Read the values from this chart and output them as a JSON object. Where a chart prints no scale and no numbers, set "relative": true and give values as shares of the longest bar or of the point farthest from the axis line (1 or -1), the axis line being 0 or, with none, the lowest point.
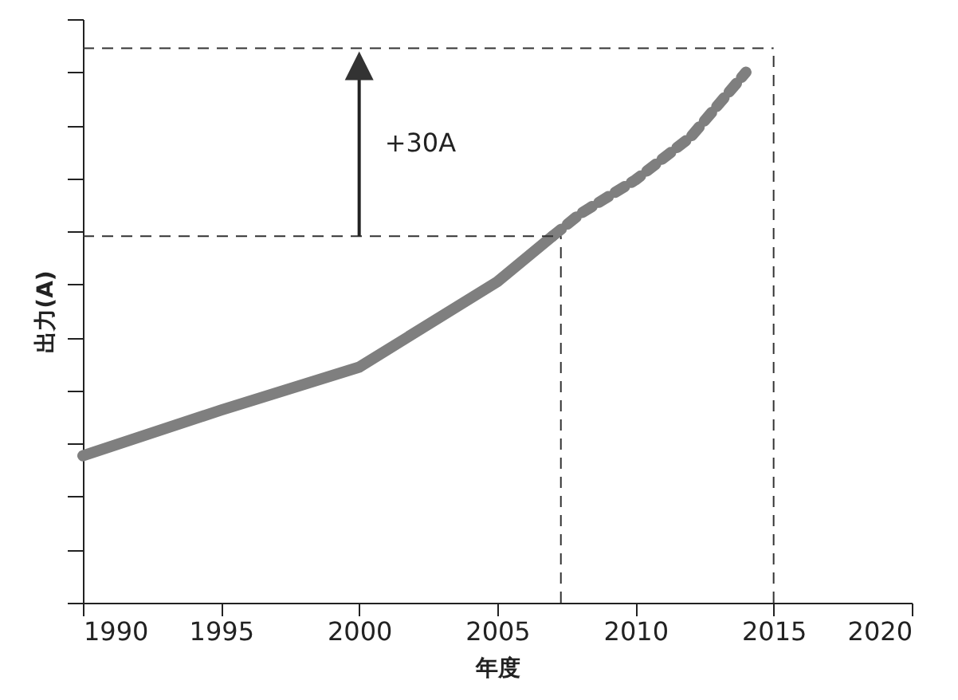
{
  "chart_data": {
    "type": "line",
    "relative": true,
    "xlabel": "年度",
    "ylabel": "出力(A)",
    "xlim": [
      1990,
      2020
    ],
    "xticks": [
      1990,
      1995,
      2000,
      2005,
      2010,
      2015,
      2020
    ],
    "series": [
      {
        "color": "#7f7f7f",
        "line_style": "solid",
        "x": [
          1990,
          1995,
          2000,
          2005,
          2007
        ],
        "values": [
          0.277,
          0.363,
          0.444,
          0.605,
          0.691
        ]
      },
      {
        "color": "#7f7f7f",
        "line_style": "dashed",
        "x": [
          2007,
          2008,
          2010,
          2012,
          2014
        ],
        "values": [
          0.691,
          0.733,
          0.797,
          0.878,
          1.0
        ]
      }
    ],
    "ref_lines": [
      {
        "axis": "y",
        "value": 0.691,
        "color": "#333333",
        "line_style": "dashed"
      },
      {
        "axis": "y",
        "value": 1.045,
        "color": "#333333",
        "line_style": "dashed"
      },
      {
        "axis": "x",
        "value": 2007.3,
        "color": "#333333",
        "line_style": "dashed"
      },
      {
        "axis": "x",
        "value": 2015,
        "color": "#333333",
        "line_style": "dashed"
      }
    ],
    "annotations": [
      "+30A"
    ],
    "grid": false,
    "marker": "none"
  }
}
